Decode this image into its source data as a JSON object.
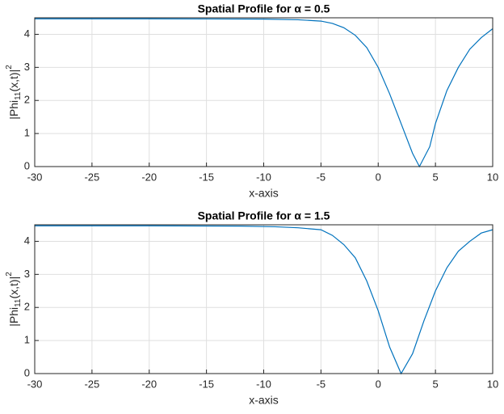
{
  "chart_data": [
    {
      "type": "line",
      "title": "Spatial Profile for α = 0.5",
      "xlabel": "x-axis",
      "ylabel": [
        "|Phi",
        "11",
        "(x,t)|",
        "2"
      ],
      "xlim": [
        -30,
        10
      ],
      "ylim": [
        0,
        4.5
      ],
      "xticks": [
        -30,
        -25,
        -20,
        -15,
        -10,
        -5,
        0,
        5,
        10
      ],
      "yticks": [
        0,
        1,
        2,
        3,
        4
      ],
      "grid": true,
      "series": [
        {
          "color": "#0072bd",
          "x": [
            -30,
            -20,
            -10,
            -7,
            -5,
            -4,
            -3,
            -2,
            -1,
            0,
            1,
            2,
            3,
            3.6,
            4.5,
            5,
            6,
            7,
            8,
            9,
            10
          ],
          "values": [
            4.47,
            4.47,
            4.46,
            4.44,
            4.4,
            4.33,
            4.2,
            3.97,
            3.6,
            3.0,
            2.2,
            1.3,
            0.4,
            0,
            0.6,
            1.3,
            2.3,
            3.0,
            3.55,
            3.9,
            4.17
          ]
        }
      ]
    },
    {
      "type": "line",
      "title": "Spatial Profile for α = 1.5",
      "xlabel": "x-axis",
      "ylabel": [
        "|Phi",
        "11",
        "(x,t)|",
        "2"
      ],
      "xlim": [
        -30,
        10
      ],
      "ylim": [
        0,
        4.5
      ],
      "xticks": [
        -30,
        -25,
        -20,
        -15,
        -10,
        -5,
        0,
        5,
        10
      ],
      "yticks": [
        0,
        1,
        2,
        3,
        4
      ],
      "grid": true,
      "series": [
        {
          "color": "#0072bd",
          "x": [
            -30,
            -20,
            -12,
            -9,
            -7,
            -5,
            -4,
            -3,
            -2,
            -1,
            0,
            1,
            2,
            3,
            4,
            5,
            6,
            7,
            8,
            9,
            10
          ],
          "values": [
            4.47,
            4.47,
            4.46,
            4.44,
            4.41,
            4.35,
            4.18,
            3.9,
            3.5,
            2.8,
            1.9,
            0.8,
            0,
            0.6,
            1.6,
            2.5,
            3.2,
            3.7,
            4.0,
            4.25,
            4.35
          ]
        }
      ]
    }
  ]
}
